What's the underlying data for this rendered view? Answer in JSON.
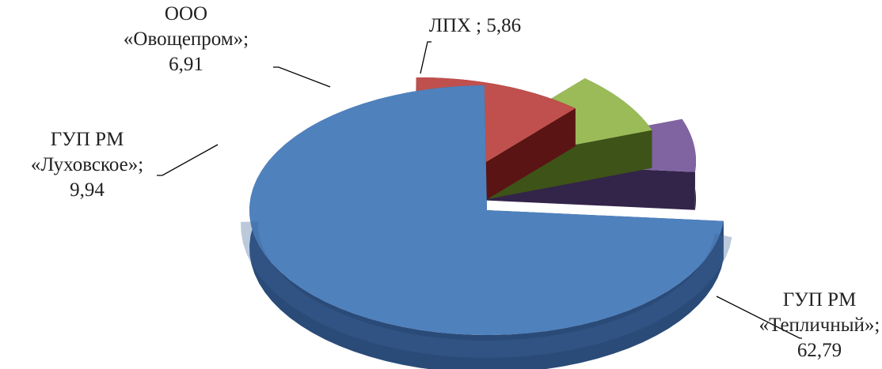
{
  "chart_data": {
    "type": "pie",
    "title": "",
    "series": [
      {
        "name": "",
        "values": [
          {
            "category": "ГУП РМ «Тепличный»",
            "value": 62.79,
            "label_lines": [
              "ГУП РМ",
              "«Тепличный»;",
              "62,79"
            ],
            "color": "#4F81BD",
            "side_color": "#2A4B78"
          },
          {
            "category": "ГУП РМ «Луховское»",
            "value": 9.94,
            "label_lines": [
              "ГУП РМ",
              "«Луховское»;",
              "9,94"
            ],
            "color": "#C0504D",
            "side_color": "#5A1414"
          },
          {
            "category": "ООО «Овощепром»",
            "value": 6.91,
            "label_lines": [
              "ООО",
              "«Овощепром»;",
              "6,91"
            ],
            "color": "#9BBB59",
            "side_color": "#3E5317"
          },
          {
            "category": "ЛПХ",
            "value": 5.86,
            "label_lines": [
              "ЛПХ ; 5,86"
            ],
            "color": "#8064A2",
            "side_color": "#33244A"
          }
        ]
      }
    ],
    "exploded": true,
    "style": "3d-pie",
    "legend": "none"
  }
}
